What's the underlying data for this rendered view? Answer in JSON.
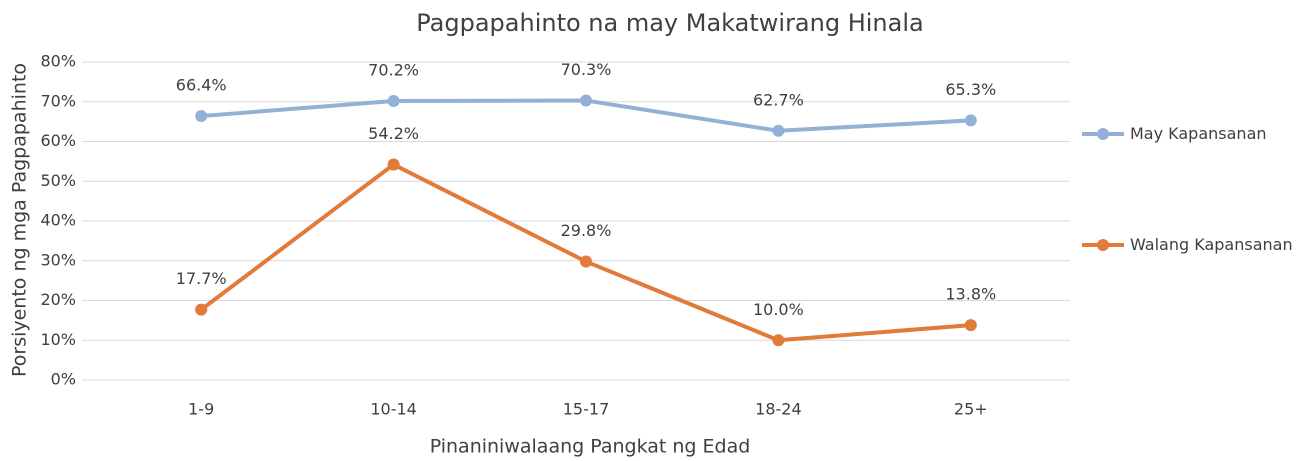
{
  "chart_data": {
    "type": "line",
    "title": "Pagpapahinto na may Makatwirang Hinala",
    "x_label": "Pinaniniwalaang Pangkat ng Edad",
    "y_label": "Porsiyento ng mga Pagpapahinto",
    "categories": [
      "1-9",
      "10-14",
      "15-17",
      "18-24",
      "25+"
    ],
    "series": [
      {
        "name": "May Kapansanan",
        "color": "#93b1d6",
        "values": [
          66.4,
          70.2,
          70.3,
          62.7,
          65.3
        ],
        "value_labels": [
          "66.4%",
          "70.2%",
          "70.3%",
          "62.7%",
          "65.3%"
        ]
      },
      {
        "name": "Walang Kapansanan",
        "color": "#e07b39",
        "values": [
          17.7,
          54.2,
          29.8,
          10.0,
          13.8
        ],
        "value_labels": [
          "17.7%",
          "54.2%",
          "29.8%",
          "10.0%",
          "13.8%"
        ]
      }
    ],
    "ylim": [
      0,
      80
    ],
    "yticks": [
      {
        "value": 0,
        "label": "0%"
      },
      {
        "value": 10,
        "label": "10%"
      },
      {
        "value": 20,
        "label": "20%"
      },
      {
        "value": 30,
        "label": "30%"
      },
      {
        "value": 40,
        "label": "40%"
      },
      {
        "value": 50,
        "label": "50%"
      },
      {
        "value": 60,
        "label": "60%"
      },
      {
        "value": 70,
        "label": "70%"
      },
      {
        "value": 80,
        "label": "80%"
      }
    ],
    "grid": true,
    "legend": "right"
  }
}
